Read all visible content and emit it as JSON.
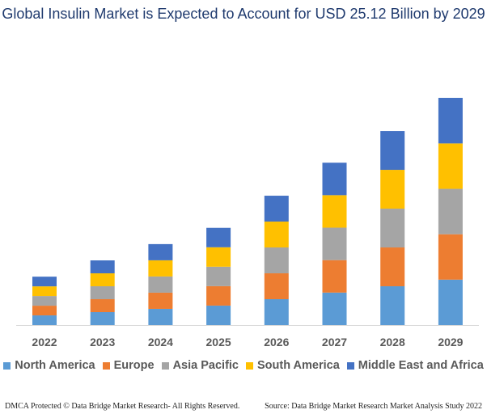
{
  "chart_data": {
    "type": "bar",
    "stacked": true,
    "title": "Global Insulin Market is Expected to Account for USD 25.12 Billion by 2029",
    "categories": [
      "2022",
      "2023",
      "2024",
      "2025",
      "2026",
      "2027",
      "2028",
      "2029"
    ],
    "series": [
      {
        "name": "North America",
        "color": "#5b9bd5",
        "values": [
          1.07,
          1.43,
          1.79,
          2.15,
          2.86,
          3.59,
          4.29,
          5.02
        ]
      },
      {
        "name": "Europe",
        "color": "#ed7d31",
        "values": [
          1.07,
          1.43,
          1.79,
          2.15,
          2.86,
          3.59,
          4.29,
          5.02
        ]
      },
      {
        "name": "Asia Pacific",
        "color": "#a5a5a5",
        "values": [
          1.07,
          1.43,
          1.79,
          2.15,
          2.86,
          3.59,
          4.29,
          5.02
        ]
      },
      {
        "name": "South America",
        "color": "#ffc000",
        "values": [
          1.07,
          1.43,
          1.79,
          2.15,
          2.86,
          3.59,
          4.29,
          5.02
        ]
      },
      {
        "name": "Middle East and Africa",
        "color": "#4472c4",
        "values": [
          1.07,
          1.43,
          1.79,
          2.15,
          2.86,
          3.59,
          4.29,
          5.04
        ]
      }
    ],
    "ylim": [
      0,
      25.12
    ],
    "grid": false,
    "legend_position": "bottom"
  },
  "footer": {
    "left": "DMCA Protected © Data Bridge Market Research- All Rights Reserved.",
    "right": "Source: Data Bridge Market Research Market Analysis Study 2022"
  }
}
